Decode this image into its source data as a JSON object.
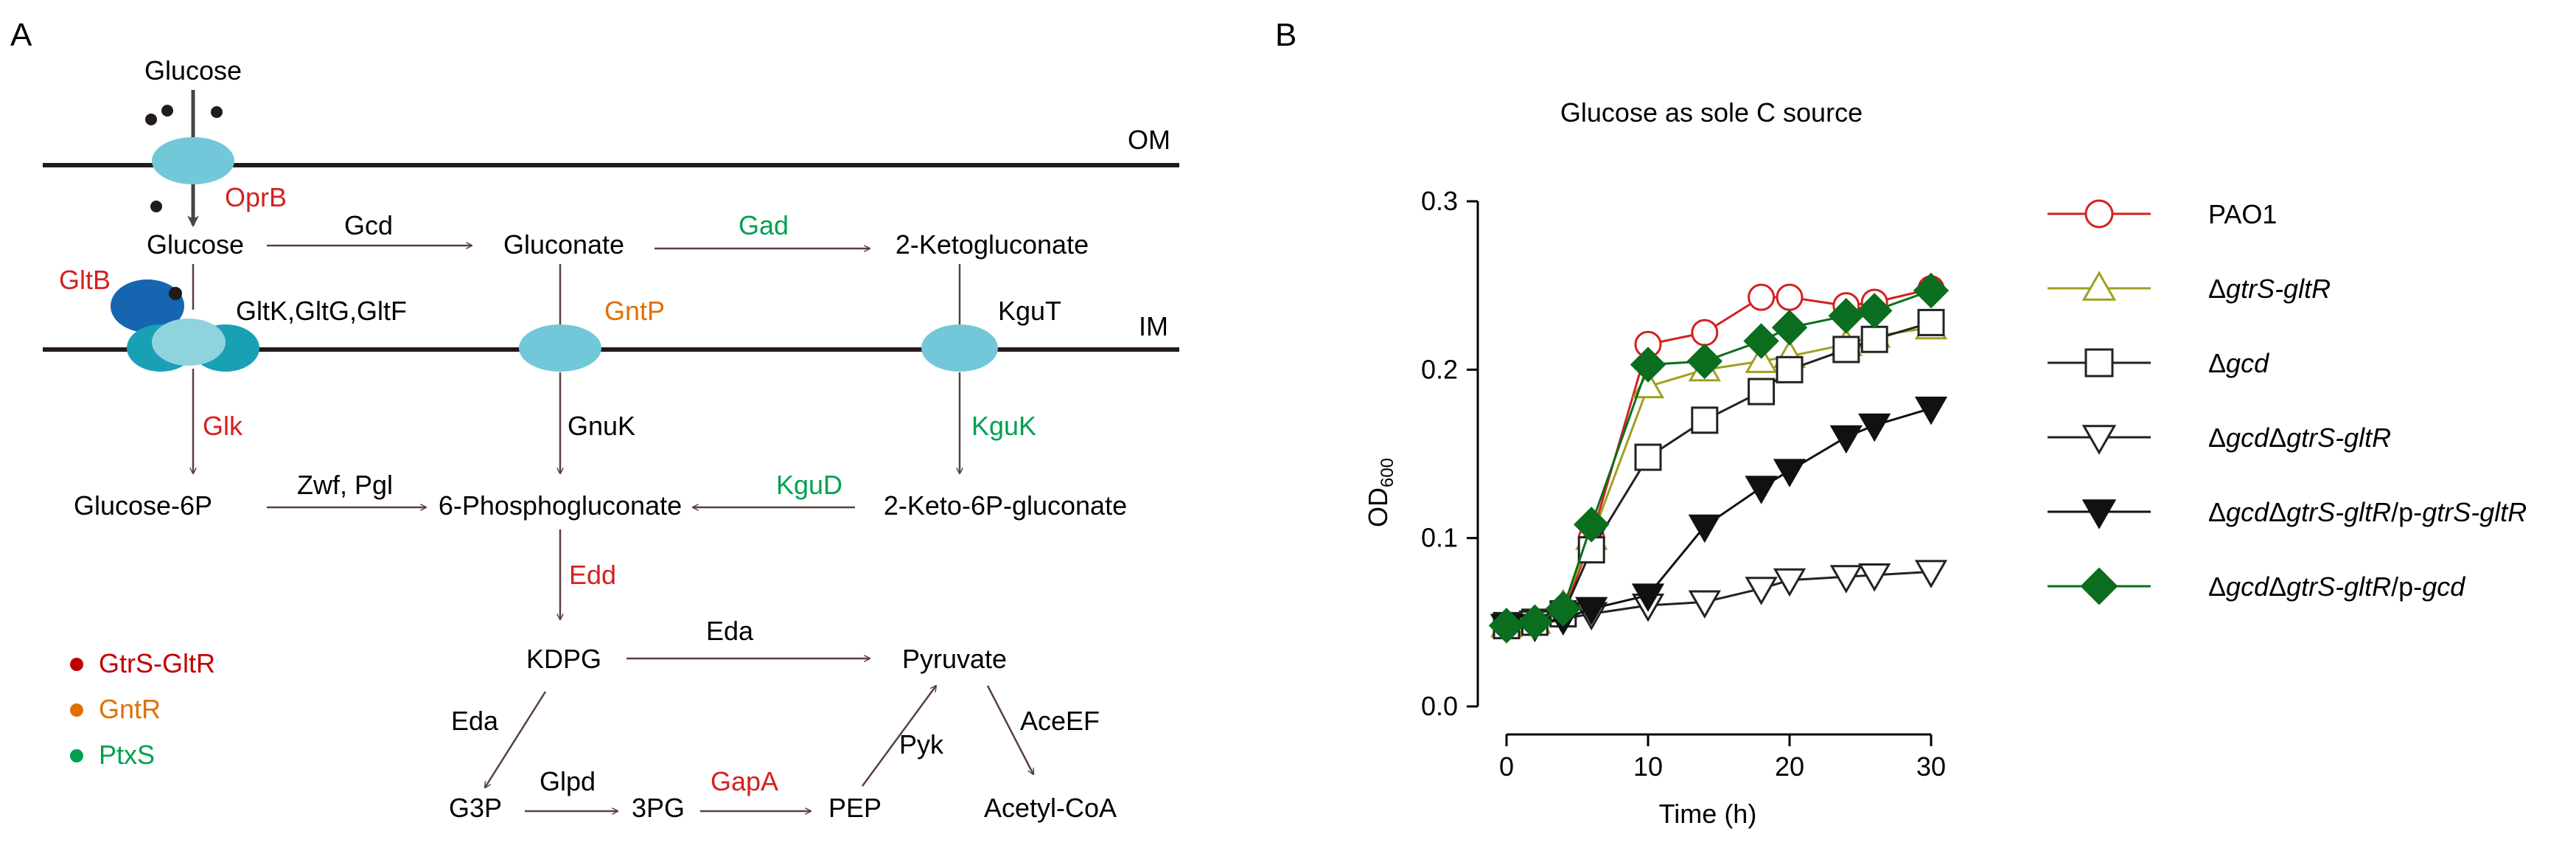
{
  "panel_a": {
    "label": "A",
    "membranes": {
      "outer": "OM",
      "inner": "IM"
    },
    "nodes": {
      "glucose_out": "Glucose",
      "glucose_peri": "Glucose",
      "gluconate": "Gluconate",
      "ketogluconate": "2-Ketogluconate",
      "glucose6p": "Glucose-6P",
      "phosphogluconate": "6-Phosphogluconate",
      "keto6p": "2-Keto-6P-gluconate",
      "kdpg": "KDPG",
      "pyruvate": "Pyruvate",
      "g3p": "G3P",
      "pg3": "3PG",
      "pep": "PEP",
      "acetylcoa": "Acetyl-CoA"
    },
    "enzymes": {
      "oprb": "OprB",
      "gcd": "Gcd",
      "gad": "Gad",
      "gltb": "GltB",
      "gltkgf": "GltK,GltG,GltF",
      "gntp": "GntP",
      "kgut": "KguT",
      "glk": "Glk",
      "gnuk": "GnuK",
      "kguk": "KguK",
      "zwf": "Zwf, Pgl",
      "kgud": "KguD",
      "edd": "Edd",
      "eda1": "Eda",
      "eda2": "Eda",
      "glpd": "Glpd",
      "gapa": "GapA",
      "pyk": "Pyk",
      "aceef": "AceEF"
    },
    "legend": [
      {
        "label": "GtrS-GltR",
        "color": "#c00000"
      },
      {
        "label": "GntR",
        "color": "#e07000"
      },
      {
        "label": "PtxS",
        "color": "#00a050"
      }
    ],
    "colors": {
      "red": "#d42020",
      "orange": "#e07000",
      "green": "#00a050",
      "porin": "#72c8d8",
      "transporter_dark": "#1565b0",
      "transporter_teal": "#1aa0b5"
    }
  },
  "panel_b": {
    "label": "B"
  },
  "chart_data": {
    "type": "line",
    "title": "Glucose as sole C source",
    "xlabel": "Time (h)",
    "ylabel": "OD",
    "ylabel_sub": "600",
    "xlim": [
      0,
      30
    ],
    "ylim": [
      0,
      0.3
    ],
    "xticks": [
      0,
      10,
      20,
      30
    ],
    "yticks": [
      0.0,
      0.1,
      0.2,
      0.3
    ],
    "ytick_labels": [
      "0.0",
      "0.1",
      "0.2",
      "0.3"
    ],
    "x": [
      0,
      2,
      4,
      6,
      10,
      14,
      18,
      20,
      24,
      26,
      30
    ],
    "series": [
      {
        "name_parts": [
          {
            "t": "PAO1",
            "i": false
          }
        ],
        "color": "#d42020",
        "marker": "circle",
        "fill": false,
        "values": [
          0.048,
          0.05,
          0.055,
          0.1,
          0.215,
          0.222,
          0.243,
          0.243,
          0.238,
          0.24,
          0.248
        ]
      },
      {
        "name_parts": [
          {
            "t": "Δ",
            "i": false
          },
          {
            "t": "gtrS-gltR",
            "i": true
          }
        ],
        "color": "#a0a020",
        "marker": "triangle-up",
        "fill": false,
        "values": [
          0.048,
          0.05,
          0.06,
          0.1,
          0.19,
          0.2,
          0.205,
          0.208,
          0.215,
          0.22,
          0.225
        ]
      },
      {
        "name_parts": [
          {
            "t": "Δ",
            "i": false
          },
          {
            "t": "gcd",
            "i": true
          }
        ],
        "color": "#222222",
        "marker": "square",
        "fill": false,
        "values": [
          0.048,
          0.05,
          0.055,
          0.093,
          0.148,
          0.17,
          0.187,
          0.2,
          0.212,
          0.218,
          0.228
        ]
      },
      {
        "name_parts": [
          {
            "t": "Δ",
            "i": false
          },
          {
            "t": "gcd",
            "i": true
          },
          {
            "t": "Δ",
            "i": false
          },
          {
            "t": "gtrS-gltR",
            "i": true
          }
        ],
        "color": "#222222",
        "marker": "triangle-down",
        "fill": false,
        "values": [
          0.048,
          0.05,
          0.052,
          0.055,
          0.06,
          0.062,
          0.07,
          0.075,
          0.077,
          0.078,
          0.08
        ]
      },
      {
        "name_parts": [
          {
            "t": "Δ",
            "i": false
          },
          {
            "t": "gcd",
            "i": true
          },
          {
            "t": "Δ",
            "i": false
          },
          {
            "t": "gtrS-gltR",
            "i": true
          },
          {
            "t": "/p-",
            "i": false
          },
          {
            "t": "gtrS-gltR",
            "i": true
          }
        ],
        "color": "#111111",
        "marker": "triangle-down",
        "fill": true,
        "values": [
          0.048,
          0.048,
          0.052,
          0.058,
          0.066,
          0.107,
          0.13,
          0.14,
          0.16,
          0.167,
          0.177
        ]
      },
      {
        "name_parts": [
          {
            "t": "Δ",
            "i": false
          },
          {
            "t": "gcd",
            "i": true
          },
          {
            "t": "Δ",
            "i": false
          },
          {
            "t": "gtrS-gltR",
            "i": true
          },
          {
            "t": "/p-",
            "i": false
          },
          {
            "t": "gcd",
            "i": true
          }
        ],
        "color": "#0a6e1e",
        "marker": "diamond",
        "fill": true,
        "values": [
          0.048,
          0.05,
          0.058,
          0.108,
          0.203,
          0.205,
          0.217,
          0.225,
          0.232,
          0.235,
          0.247
        ]
      }
    ],
    "legend_position": "right",
    "grid": false
  }
}
